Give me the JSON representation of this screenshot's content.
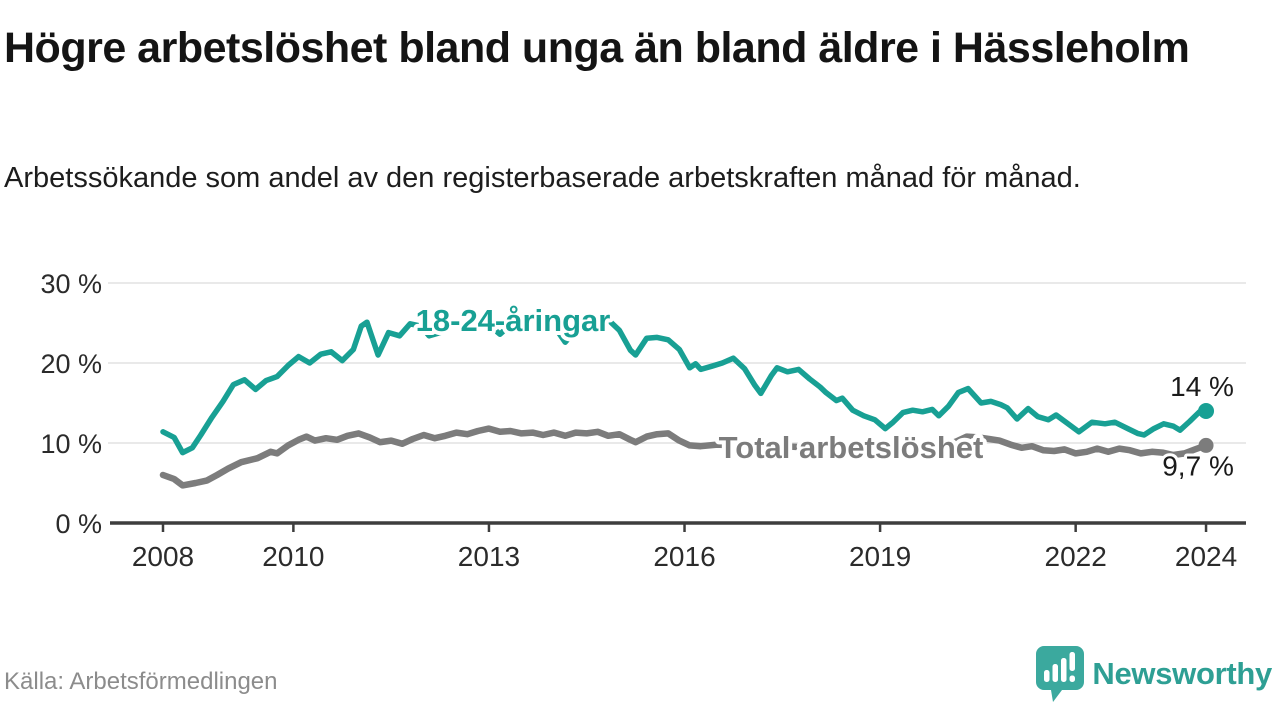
{
  "header": {
    "title": "Högre arbetslöshet bland unga än bland äldre i Hässleholm",
    "subtitle": "Arbetssökande som andel av den registerbaserade arbetskraften månad för månad."
  },
  "footer": {
    "source": "Källa: Arbetsförmedlingen",
    "brand": "Newsworthy",
    "logo_icon": "speech-bubble-bar-chart-icon"
  },
  "colors": {
    "youth_line": "#18a094",
    "total_line": "#7c7c7c",
    "axis": "#3d3d3d",
    "grid": "#e2e2e2",
    "tick_label": "#2b2b2b",
    "end_label": "#1a1a1a",
    "source_text": "#8c8c8c",
    "brand_teal": "#3ba99e",
    "background": "#ffffff"
  },
  "chart_data": {
    "type": "line",
    "title": "Högre arbetslöshet bland unga än bland äldre i Hässleholm",
    "subtitle": "Arbetssökande som andel av den registerbaserade arbetskraften månad för månad.",
    "xlabel": "",
    "ylabel": "",
    "y_suffix": " %",
    "x_ticks": [
      2008,
      2010,
      2013,
      2016,
      2019,
      2022,
      2024
    ],
    "y_ticks": [
      0,
      10,
      20,
      30
    ],
    "xlim": [
      2007.2,
      2024.6
    ],
    "ylim": [
      0,
      32.5
    ],
    "grid": "horizontal",
    "legend_position": "inline-labels",
    "series": [
      {
        "name": "18-24-åringar",
        "color_key": "youth_line",
        "end_label": "14 %",
        "end_value": 14.0,
        "points": [
          [
            2008.0,
            11.4
          ],
          [
            2008.17,
            10.7
          ],
          [
            2008.3,
            8.8
          ],
          [
            2008.45,
            9.4
          ],
          [
            2008.58,
            11.0
          ],
          [
            2008.75,
            13.2
          ],
          [
            2008.92,
            15.2
          ],
          [
            2009.08,
            17.3
          ],
          [
            2009.25,
            17.9
          ],
          [
            2009.42,
            16.7
          ],
          [
            2009.58,
            17.8
          ],
          [
            2009.75,
            18.3
          ],
          [
            2009.92,
            19.7
          ],
          [
            2010.08,
            20.8
          ],
          [
            2010.25,
            20.0
          ],
          [
            2010.42,
            21.1
          ],
          [
            2010.58,
            21.4
          ],
          [
            2010.75,
            20.3
          ],
          [
            2010.92,
            21.7
          ],
          [
            2011.04,
            24.6
          ],
          [
            2011.13,
            25.1
          ],
          [
            2011.3,
            21.0
          ],
          [
            2011.46,
            23.8
          ],
          [
            2011.63,
            23.4
          ],
          [
            2011.79,
            24.9
          ],
          [
            2011.96,
            24.6
          ],
          [
            2012.08,
            23.4
          ],
          [
            2012.25,
            23.8
          ],
          [
            2012.42,
            24.7
          ],
          [
            2012.58,
            25.0
          ],
          [
            2012.75,
            24.6
          ],
          [
            2012.92,
            25.1
          ],
          [
            2013.08,
            24.2
          ],
          [
            2013.17,
            23.6
          ],
          [
            2013.33,
            24.8
          ],
          [
            2013.5,
            25.3
          ],
          [
            2013.67,
            24.9
          ],
          [
            2013.83,
            25.1
          ],
          [
            2014.0,
            24.6
          ],
          [
            2014.17,
            22.6
          ],
          [
            2014.33,
            24.1
          ],
          [
            2014.5,
            24.6
          ],
          [
            2014.67,
            24.9
          ],
          [
            2014.83,
            25.4
          ],
          [
            2015.0,
            24.1
          ],
          [
            2015.17,
            21.6
          ],
          [
            2015.25,
            21.0
          ],
          [
            2015.42,
            23.1
          ],
          [
            2015.58,
            23.2
          ],
          [
            2015.75,
            22.9
          ],
          [
            2015.92,
            21.7
          ],
          [
            2016.08,
            19.4
          ],
          [
            2016.17,
            19.9
          ],
          [
            2016.25,
            19.2
          ],
          [
            2016.42,
            19.6
          ],
          [
            2016.58,
            20.0
          ],
          [
            2016.75,
            20.6
          ],
          [
            2016.92,
            19.3
          ],
          [
            2017.08,
            17.2
          ],
          [
            2017.17,
            16.2
          ],
          [
            2017.33,
            18.4
          ],
          [
            2017.42,
            19.4
          ],
          [
            2017.58,
            18.9
          ],
          [
            2017.75,
            19.2
          ],
          [
            2017.92,
            18.0
          ],
          [
            2018.08,
            17.0
          ],
          [
            2018.17,
            16.3
          ],
          [
            2018.33,
            15.3
          ],
          [
            2018.42,
            15.6
          ],
          [
            2018.58,
            14.1
          ],
          [
            2018.75,
            13.4
          ],
          [
            2018.92,
            12.9
          ],
          [
            2019.08,
            11.8
          ],
          [
            2019.2,
            12.6
          ],
          [
            2019.35,
            13.8
          ],
          [
            2019.5,
            14.1
          ],
          [
            2019.65,
            13.9
          ],
          [
            2019.8,
            14.2
          ],
          [
            2019.9,
            13.4
          ],
          [
            2020.05,
            14.6
          ],
          [
            2020.2,
            16.3
          ],
          [
            2020.35,
            16.8
          ],
          [
            2020.55,
            15.0
          ],
          [
            2020.7,
            15.2
          ],
          [
            2020.85,
            14.8
          ],
          [
            2020.95,
            14.4
          ],
          [
            2021.1,
            13.0
          ],
          [
            2021.27,
            14.3
          ],
          [
            2021.42,
            13.3
          ],
          [
            2021.58,
            12.9
          ],
          [
            2021.7,
            13.5
          ],
          [
            2021.9,
            12.3
          ],
          [
            2022.05,
            11.4
          ],
          [
            2022.25,
            12.6
          ],
          [
            2022.45,
            12.4
          ],
          [
            2022.6,
            12.6
          ],
          [
            2022.8,
            11.8
          ],
          [
            2022.95,
            11.2
          ],
          [
            2023.05,
            11.0
          ],
          [
            2023.2,
            11.8
          ],
          [
            2023.35,
            12.4
          ],
          [
            2023.5,
            12.1
          ],
          [
            2023.6,
            11.6
          ],
          [
            2023.75,
            12.7
          ],
          [
            2023.9,
            13.9
          ],
          [
            2024.0,
            14.0
          ]
        ]
      },
      {
        "name": "Total arbetslöshet",
        "color_key": "total_line",
        "end_label": "9,7 %",
        "end_value": 9.7,
        "points": [
          [
            2008.0,
            6.0
          ],
          [
            2008.17,
            5.5
          ],
          [
            2008.3,
            4.7
          ],
          [
            2008.5,
            5.0
          ],
          [
            2008.67,
            5.3
          ],
          [
            2008.83,
            6.0
          ],
          [
            2009.0,
            6.8
          ],
          [
            2009.2,
            7.6
          ],
          [
            2009.45,
            8.1
          ],
          [
            2009.65,
            8.9
          ],
          [
            2009.75,
            8.7
          ],
          [
            2009.92,
            9.7
          ],
          [
            2010.08,
            10.4
          ],
          [
            2010.2,
            10.8
          ],
          [
            2010.33,
            10.3
          ],
          [
            2010.5,
            10.6
          ],
          [
            2010.67,
            10.4
          ],
          [
            2010.83,
            10.9
          ],
          [
            2011.0,
            11.2
          ],
          [
            2011.17,
            10.7
          ],
          [
            2011.33,
            10.1
          ],
          [
            2011.5,
            10.3
          ],
          [
            2011.67,
            9.9
          ],
          [
            2011.83,
            10.5
          ],
          [
            2012.0,
            11.0
          ],
          [
            2012.17,
            10.6
          ],
          [
            2012.33,
            10.9
          ],
          [
            2012.5,
            11.3
          ],
          [
            2012.67,
            11.1
          ],
          [
            2012.83,
            11.5
          ],
          [
            2013.0,
            11.8
          ],
          [
            2013.17,
            11.4
          ],
          [
            2013.33,
            11.5
          ],
          [
            2013.5,
            11.2
          ],
          [
            2013.67,
            11.3
          ],
          [
            2013.83,
            11.0
          ],
          [
            2014.0,
            11.3
          ],
          [
            2014.17,
            10.9
          ],
          [
            2014.33,
            11.3
          ],
          [
            2014.5,
            11.2
          ],
          [
            2014.67,
            11.4
          ],
          [
            2014.83,
            10.9
          ],
          [
            2015.0,
            11.1
          ],
          [
            2015.17,
            10.4
          ],
          [
            2015.25,
            10.1
          ],
          [
            2015.42,
            10.8
          ],
          [
            2015.58,
            11.1
          ],
          [
            2015.75,
            11.2
          ],
          [
            2015.92,
            10.3
          ],
          [
            2016.08,
            9.7
          ],
          [
            2016.25,
            9.6
          ],
          [
            2016.5,
            9.8
          ],
          [
            2016.75,
            9.7
          ],
          [
            2017.0,
            9.5
          ],
          [
            2017.25,
            9.4
          ],
          [
            2017.5,
            9.6
          ],
          [
            2017.75,
            9.5
          ],
          [
            2018.0,
            9.7
          ],
          [
            2018.25,
            9.9
          ],
          [
            2018.5,
            9.6
          ],
          [
            2018.75,
            9.4
          ],
          [
            2019.0,
            9.1
          ],
          [
            2019.25,
            9.2
          ],
          [
            2019.5,
            9.4
          ],
          [
            2019.75,
            9.3
          ],
          [
            2019.92,
            9.5
          ],
          [
            2020.17,
            10.2
          ],
          [
            2020.33,
            10.8
          ],
          [
            2020.5,
            10.7
          ],
          [
            2020.67,
            10.5
          ],
          [
            2020.83,
            10.3
          ],
          [
            2021.0,
            9.8
          ],
          [
            2021.17,
            9.4
          ],
          [
            2021.33,
            9.6
          ],
          [
            2021.5,
            9.1
          ],
          [
            2021.67,
            9.0
          ],
          [
            2021.83,
            9.2
          ],
          [
            2022.0,
            8.7
          ],
          [
            2022.17,
            8.9
          ],
          [
            2022.33,
            9.3
          ],
          [
            2022.5,
            8.9
          ],
          [
            2022.67,
            9.3
          ],
          [
            2022.83,
            9.1
          ],
          [
            2023.0,
            8.7
          ],
          [
            2023.17,
            8.9
          ],
          [
            2023.33,
            8.8
          ],
          [
            2023.5,
            8.5
          ],
          [
            2023.67,
            8.7
          ],
          [
            2023.83,
            9.2
          ],
          [
            2024.0,
            9.7
          ]
        ]
      }
    ]
  }
}
